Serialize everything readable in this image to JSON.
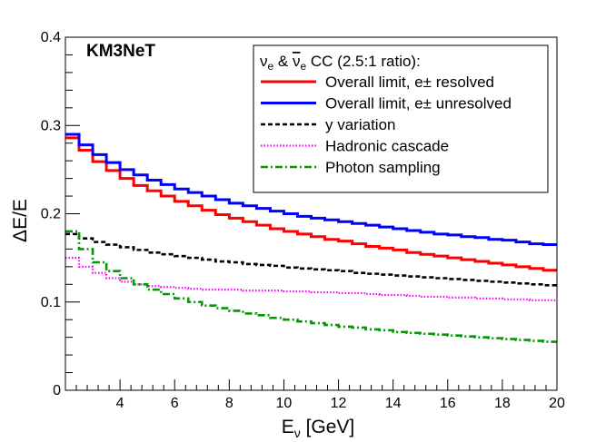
{
  "chart_data": {
    "type": "line",
    "title": "KM3NeT",
    "xlabel": "E",
    "xlabel_sub": "ν",
    "xlabel_unit": " [GeV]",
    "ylabel": "ΔE/E",
    "xlim": [
      2,
      20
    ],
    "ylim": [
      0,
      0.4
    ],
    "xticks": [
      4,
      6,
      8,
      10,
      12,
      14,
      16,
      18,
      20
    ],
    "yticks": [
      0,
      0.1,
      0.2,
      0.3,
      0.4
    ],
    "ytick_labels": [
      "0",
      "0.1",
      "0.2",
      "0.3",
      "0.4"
    ],
    "legend": {
      "header": "ν_e & ν̄_e CC (2.5:1 ratio):",
      "header_parts": {
        "nu": "ν",
        "sub_e": "e",
        "amp": " & ",
        "nubar": "ν",
        "sub_e2": "e",
        "rest": " CC (2.5:1 ratio):"
      },
      "placement": "top-right"
    },
    "series": [
      {
        "name": "Overall limit, e± resolved",
        "color": "#ff0000",
        "style": "solid",
        "x": [
          2,
          2.5,
          3,
          3.5,
          4,
          4.5,
          5,
          5.5,
          6,
          6.5,
          7,
          7.5,
          8,
          8.5,
          9,
          9.5,
          10,
          10.5,
          11,
          11.5,
          12,
          12.5,
          13,
          13.5,
          14,
          14.5,
          15,
          15.5,
          16,
          16.5,
          17,
          17.5,
          18,
          18.5,
          19,
          19.5,
          20
        ],
        "y": [
          0.286,
          0.272,
          0.259,
          0.249,
          0.24,
          0.232,
          0.226,
          0.22,
          0.214,
          0.209,
          0.204,
          0.199,
          0.195,
          0.191,
          0.187,
          0.183,
          0.18,
          0.177,
          0.174,
          0.171,
          0.169,
          0.166,
          0.163,
          0.161,
          0.159,
          0.156,
          0.154,
          0.152,
          0.15,
          0.148,
          0.146,
          0.144,
          0.142,
          0.14,
          0.138,
          0.136,
          0.136
        ]
      },
      {
        "name": "Overall limit, e± unresolved",
        "color": "#0000ff",
        "style": "solid",
        "x": [
          2,
          2.5,
          3,
          3.5,
          4,
          4.5,
          5,
          5.5,
          6,
          6.5,
          7,
          7.5,
          8,
          8.5,
          9,
          9.5,
          10,
          10.5,
          11,
          11.5,
          12,
          12.5,
          13,
          13.5,
          14,
          14.5,
          15,
          15.5,
          16,
          16.5,
          17,
          17.5,
          18,
          18.5,
          19,
          19.5,
          20
        ],
        "y": [
          0.29,
          0.278,
          0.267,
          0.258,
          0.25,
          0.244,
          0.238,
          0.233,
          0.228,
          0.224,
          0.22,
          0.216,
          0.212,
          0.209,
          0.206,
          0.203,
          0.2,
          0.197,
          0.195,
          0.193,
          0.191,
          0.189,
          0.187,
          0.185,
          0.183,
          0.181,
          0.179,
          0.177,
          0.176,
          0.174,
          0.173,
          0.171,
          0.17,
          0.168,
          0.166,
          0.165,
          0.165
        ]
      },
      {
        "name": "y variation",
        "color": "#000000",
        "style": "dashed",
        "x": [
          2,
          2.5,
          3,
          3.5,
          4,
          4.5,
          5,
          5.5,
          6,
          6.5,
          7,
          7.5,
          8,
          8.5,
          9,
          9.5,
          10,
          10.5,
          11,
          11.5,
          12,
          12.5,
          13,
          13.5,
          14,
          14.5,
          15,
          15.5,
          16,
          16.5,
          17,
          17.5,
          18,
          18.5,
          19,
          19.5,
          20
        ],
        "y": [
          0.177,
          0.172,
          0.168,
          0.165,
          0.162,
          0.159,
          0.156,
          0.154,
          0.152,
          0.15,
          0.148,
          0.146,
          0.145,
          0.143,
          0.142,
          0.141,
          0.139,
          0.138,
          0.137,
          0.136,
          0.135,
          0.133,
          0.132,
          0.131,
          0.13,
          0.129,
          0.128,
          0.127,
          0.126,
          0.125,
          0.124,
          0.123,
          0.122,
          0.121,
          0.12,
          0.119,
          0.118
        ]
      },
      {
        "name": "Hadronic cascade",
        "color": "#ff00ff",
        "style": "dotted",
        "x": [
          2,
          2.5,
          3,
          3.5,
          4,
          4.5,
          5,
          5.5,
          6,
          6.5,
          7,
          7.5,
          8,
          8.5,
          9,
          9.5,
          10,
          10.5,
          11,
          11.5,
          12,
          12.5,
          13,
          13.5,
          14,
          14.5,
          15,
          15.5,
          16,
          16.5,
          17,
          17.5,
          18,
          18.5,
          19,
          19.5,
          20
        ],
        "y": [
          0.15,
          0.14,
          0.133,
          0.127,
          0.123,
          0.12,
          0.118,
          0.117,
          0.116,
          0.115,
          0.114,
          0.114,
          0.114,
          0.113,
          0.113,
          0.113,
          0.112,
          0.112,
          0.111,
          0.111,
          0.11,
          0.11,
          0.109,
          0.108,
          0.108,
          0.107,
          0.106,
          0.106,
          0.105,
          0.105,
          0.104,
          0.104,
          0.103,
          0.103,
          0.102,
          0.102,
          0.101
        ]
      },
      {
        "name": "Photon sampling",
        "color": "#009900",
        "style": "dashdot",
        "x": [
          2,
          2.5,
          3,
          3.5,
          4,
          4.5,
          5,
          5.5,
          6,
          6.5,
          7,
          7.5,
          8,
          8.5,
          9,
          9.5,
          10,
          10.5,
          11,
          11.5,
          12,
          12.5,
          13,
          13.5,
          14,
          14.5,
          15,
          15.5,
          16,
          16.5,
          17,
          17.5,
          18,
          18.5,
          19,
          19.5,
          20
        ],
        "y": [
          0.18,
          0.16,
          0.145,
          0.135,
          0.127,
          0.12,
          0.114,
          0.109,
          0.104,
          0.1,
          0.096,
          0.093,
          0.09,
          0.087,
          0.085,
          0.082,
          0.08,
          0.078,
          0.076,
          0.074,
          0.072,
          0.071,
          0.069,
          0.068,
          0.066,
          0.065,
          0.064,
          0.063,
          0.062,
          0.061,
          0.06,
          0.059,
          0.058,
          0.057,
          0.056,
          0.055,
          0.055
        ]
      }
    ]
  }
}
